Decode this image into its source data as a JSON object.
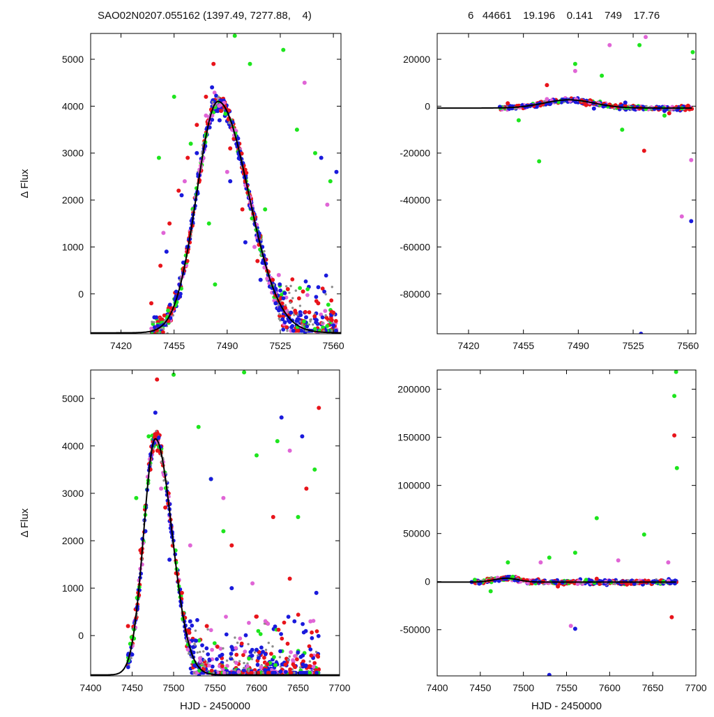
{
  "header": {
    "left": "SAO02N0207.055162 (1397.49, 7277.88,    4)",
    "right": "6   44661    19.196    0.141    749    17.76"
  },
  "colors": {
    "red": "#e8141b",
    "green": "#1ee51e",
    "blue": "#1a1adc",
    "magenta": "#e065d6",
    "gray": "#8c8c8c",
    "model": "#000000",
    "axes": "#000000"
  },
  "chart_data": [
    {
      "id": "top-left",
      "type": "scatter",
      "title": "",
      "xlabel": "",
      "ylabel": "Δ Flux",
      "xlim": [
        7400,
        7565
      ],
      "ylim": [
        -850,
        5550
      ],
      "xticks": [
        7420,
        7455,
        7490,
        7525,
        7560
      ],
      "yticks": [
        0,
        1000,
        2000,
        3000,
        4000,
        5000
      ],
      "model": {
        "peak_x": 7484,
        "peak_y": 4100,
        "baseline": -830,
        "rise_width": 14,
        "decay_width": 20
      },
      "series": [
        {
          "color": "red",
          "x": [
            7440,
            7446,
            7452,
            7458,
            7464,
            7470,
            7476,
            7481,
            7486,
            7492,
            7500,
            7510,
            7520,
            7530,
            7540,
            7550,
            7560
          ],
          "y": [
            -200,
            600,
            1500,
            2200,
            2900,
            3600,
            4200,
            4900,
            3900,
            3100,
            1800,
            700,
            300,
            100,
            50,
            -200,
            -400
          ]
        },
        {
          "color": "green",
          "x": [
            7445,
            7455,
            7466,
            7478,
            7482,
            7495,
            7505,
            7515,
            7527,
            7536,
            7548,
            7558
          ],
          "y": [
            2900,
            4200,
            3200,
            1500,
            200,
            5500,
            4900,
            1800,
            5200,
            3500,
            3000,
            2400
          ]
        },
        {
          "color": "blue",
          "x": [
            7442,
            7450,
            7460,
            7470,
            7480,
            7485,
            7492,
            7502,
            7512,
            7522,
            7532,
            7542,
            7552,
            7562
          ],
          "y": [
            -500,
            900,
            2100,
            3000,
            4400,
            3700,
            2400,
            1100,
            300,
            -200,
            -400,
            -500,
            2900,
            2600
          ]
        },
        {
          "color": "magenta",
          "x": [
            7448,
            7462,
            7476,
            7490,
            7508,
            7524,
            7541,
            7556
          ],
          "y": [
            1300,
            2400,
            3800,
            2600,
            1000,
            400,
            4500,
            1900
          ]
        }
      ]
    },
    {
      "id": "top-right",
      "type": "scatter",
      "title": "",
      "xlabel": "",
      "ylabel": "",
      "xlim": [
        7400,
        7565
      ],
      "ylim": [
        -97000,
        31000
      ],
      "xticks": [
        7420,
        7455,
        7490,
        7525,
        7560
      ],
      "yticks": [
        -80000,
        -60000,
        -40000,
        -20000,
        0,
        20000
      ],
      "model": {
        "baseline": -800,
        "bump_x": 7484,
        "bump_height": 3500,
        "bump_width": 16
      },
      "series": [
        {
          "color": "red",
          "x": [
            7445,
            7470,
            7495,
            7520,
            7532,
            7548,
            7560
          ],
          "y": [
            1200,
            9000,
            500,
            200,
            -19000,
            -3000,
            200
          ]
        },
        {
          "color": "green",
          "x": [
            7452,
            7465,
            7488,
            7505,
            7518,
            7529,
            7545,
            7563
          ],
          "y": [
            -6000,
            -23500,
            18000,
            13000,
            -10000,
            26000,
            -4000,
            23000
          ]
        },
        {
          "color": "blue",
          "x": [
            7440,
            7460,
            7480,
            7500,
            7520,
            7530,
            7545,
            7562
          ],
          "y": [
            -300,
            500,
            2500,
            -1000,
            1500,
            -97000,
            -2000,
            -49000
          ]
        },
        {
          "color": "magenta",
          "x": [
            7470,
            7488,
            7510,
            7533,
            7556,
            7562
          ],
          "y": [
            3000,
            15000,
            26000,
            29500,
            -47000,
            -23000
          ]
        }
      ]
    },
    {
      "id": "bottom-left",
      "type": "scatter",
      "title": "",
      "xlabel": "HJD - 2450000",
      "ylabel": "Δ Flux",
      "xlim": [
        7400,
        7700
      ],
      "ylim": [
        -850,
        5600
      ],
      "xticks": [
        7400,
        7450,
        7500,
        7550,
        7600,
        7650,
        7700
      ],
      "yticks": [
        0,
        1000,
        2000,
        3000,
        4000,
        5000
      ],
      "model": {
        "peak_x": 7478,
        "peak_y": 4150,
        "baseline": -830,
        "rise_width": 14,
        "decay_width": 20
      },
      "series": [
        {
          "color": "red",
          "x": [
            7445,
            7460,
            7472,
            7480,
            7490,
            7510,
            7540,
            7570,
            7600,
            7620,
            7640,
            7660,
            7675
          ],
          "y": [
            200,
            1800,
            3500,
            5400,
            2700,
            900,
            200,
            1900,
            400,
            2500,
            1200,
            3100,
            4800
          ]
        },
        {
          "color": "green",
          "x": [
            7455,
            7470,
            7500,
            7530,
            7545,
            7560,
            7585,
            7600,
            7625,
            7650,
            7670
          ],
          "y": [
            2900,
            4200,
            5500,
            4400,
            3300,
            2200,
            5550,
            3800,
            4100,
            2500,
            3500
          ]
        },
        {
          "color": "blue",
          "x": [
            7450,
            7466,
            7478,
            7495,
            7520,
            7545,
            7570,
            7600,
            7630,
            7655,
            7672
          ],
          "y": [
            -400,
            2200,
            4700,
            1600,
            300,
            3300,
            1000,
            -300,
            4600,
            4200,
            900
          ]
        },
        {
          "color": "magenta",
          "x": [
            7462,
            7485,
            7520,
            7560,
            7595,
            7640,
            7665
          ],
          "y": [
            1500,
            3100,
            1900,
            2900,
            1100,
            3900,
            300
          ]
        }
      ]
    },
    {
      "id": "bottom-right",
      "type": "scatter",
      "title": "",
      "xlabel": "HJD - 2450000",
      "ylabel": "",
      "xlim": [
        7400,
        7700
      ],
      "ylim": [
        -98000,
        220000
      ],
      "xticks": [
        7400,
        7450,
        7500,
        7550,
        7600,
        7650,
        7700
      ],
      "yticks": [
        -50000,
        0,
        50000,
        100000,
        150000,
        200000
      ],
      "model": {
        "baseline": -500,
        "bump_x": 7480,
        "bump_height": 4000,
        "bump_width": 14
      },
      "series": [
        {
          "color": "red",
          "x": [
            7460,
            7500,
            7540,
            7585,
            7620,
            7672,
            7675
          ],
          "y": [
            1000,
            2000,
            -5000,
            3000,
            -3000,
            -37000,
            152000
          ]
        },
        {
          "color": "green",
          "x": [
            7462,
            7482,
            7530,
            7560,
            7585,
            7640,
            7675,
            7677,
            7678
          ],
          "y": [
            -10000,
            20000,
            25000,
            30000,
            66000,
            49000,
            193000,
            218000,
            118000
          ]
        },
        {
          "color": "blue",
          "x": [
            7440,
            7490,
            7530,
            7560,
            7600,
            7650,
            7676
          ],
          "y": [
            -500,
            1500,
            -97000,
            -49000,
            800,
            -600,
            1000
          ]
        },
        {
          "color": "magenta",
          "x": [
            7470,
            7520,
            7555,
            7610,
            7668
          ],
          "y": [
            4000,
            20000,
            -46000,
            22000,
            20000
          ]
        }
      ]
    }
  ]
}
